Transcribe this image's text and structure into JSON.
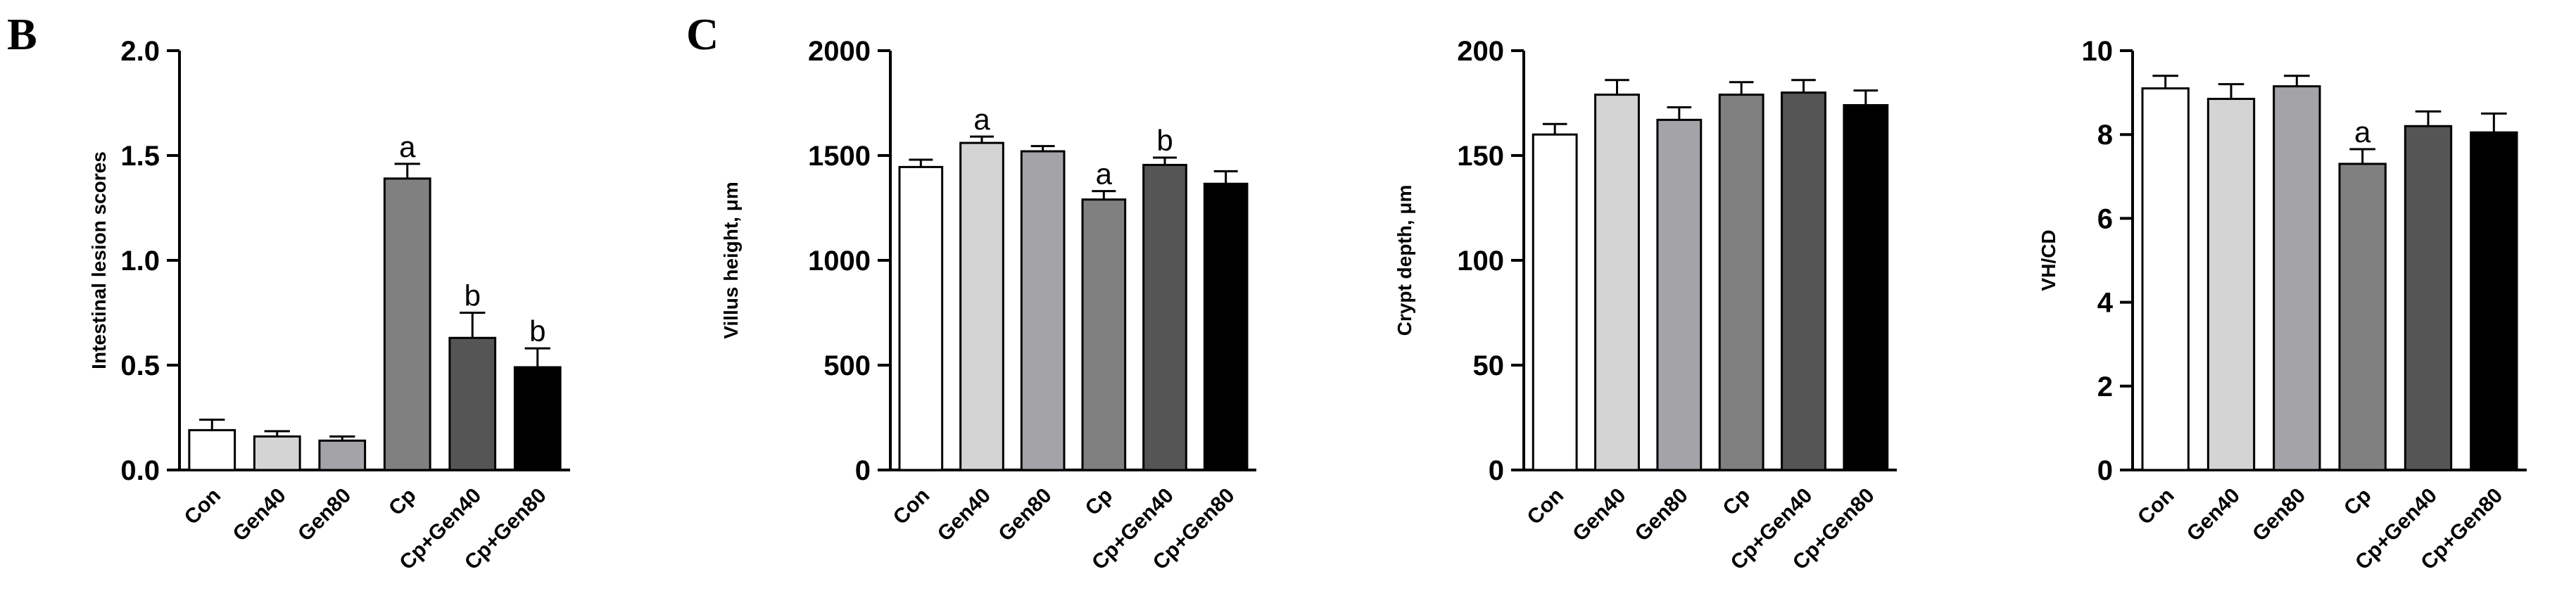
{
  "figure": {
    "panel_letters": [
      {
        "label": "B"
      },
      {
        "label": "C"
      }
    ]
  },
  "chart_data": [
    {
      "type": "bar",
      "panel": "B",
      "categories": [
        "Con",
        "Gen40",
        "Gen80",
        "Cp",
        "Cp+Gen40",
        "Cp+Gen80"
      ],
      "values": [
        0.19,
        0.16,
        0.14,
        1.39,
        0.63,
        0.49
      ],
      "errors": [
        0.05,
        0.025,
        0.02,
        0.07,
        0.12,
        0.09
      ],
      "annotations": [
        "",
        "",
        "",
        "a",
        "b",
        "b"
      ],
      "colors": [
        "#ffffff",
        "#d4d4d4",
        "#a4a4a8",
        "#808080",
        "#555555",
        "#000000"
      ],
      "title": "",
      "xlabel": "",
      "ylabel": "Intestinal lesion scores",
      "ylim": [
        0,
        2.0
      ],
      "yticks": [
        "0.0",
        "0.5",
        "1.0",
        "1.5",
        "2.0"
      ],
      "ytick_values": [
        0,
        0.5,
        1.0,
        1.5,
        2.0
      ],
      "grid": false
    },
    {
      "type": "bar",
      "panel": "C",
      "categories": [
        "Con",
        "Gen40",
        "Gen80",
        "Cp",
        "Cp+Gen40",
        "Cp+Gen80"
      ],
      "values": [
        1445,
        1560,
        1520,
        1290,
        1455,
        1365
      ],
      "errors": [
        35,
        30,
        25,
        40,
        35,
        60
      ],
      "annotations": [
        "",
        "a",
        "",
        "a",
        "b",
        ""
      ],
      "colors": [
        "#ffffff",
        "#d4d4d4",
        "#a4a4a8",
        "#808080",
        "#555555",
        "#000000"
      ],
      "title": "",
      "xlabel": "",
      "ylabel": "Villus height, μm",
      "ylim": [
        0,
        2000
      ],
      "yticks": [
        "0",
        "500",
        "1000",
        "1500",
        "2000"
      ],
      "ytick_values": [
        0,
        500,
        1000,
        1500,
        2000
      ],
      "grid": false
    },
    {
      "type": "bar",
      "categories": [
        "Con",
        "Gen40",
        "Gen80",
        "Cp",
        "Cp+Gen40",
        "Cp+Gen80"
      ],
      "values": [
        160,
        179,
        167,
        179,
        180,
        174
      ],
      "errors": [
        5,
        7,
        6,
        6,
        6,
        7
      ],
      "annotations": [
        "",
        "",
        "",
        "",
        "",
        ""
      ],
      "colors": [
        "#ffffff",
        "#d4d4d4",
        "#a4a4a8",
        "#808080",
        "#555555",
        "#000000"
      ],
      "title": "",
      "xlabel": "",
      "ylabel": "Crypt depth, μm",
      "ylim": [
        0,
        200
      ],
      "yticks": [
        "0",
        "50",
        "100",
        "150",
        "200"
      ],
      "ytick_values": [
        0,
        50,
        100,
        150,
        200
      ],
      "grid": false
    },
    {
      "type": "bar",
      "categories": [
        "Con",
        "Gen40",
        "Gen80",
        "Cp",
        "Cp+Gen40",
        "Cp+Gen80"
      ],
      "values": [
        9.1,
        8.85,
        9.15,
        7.3,
        8.2,
        8.05
      ],
      "errors": [
        0.3,
        0.35,
        0.25,
        0.35,
        0.35,
        0.45
      ],
      "annotations": [
        "",
        "",
        "",
        "a",
        "",
        ""
      ],
      "colors": [
        "#ffffff",
        "#d4d4d4",
        "#a4a4a8",
        "#808080",
        "#555555",
        "#000000"
      ],
      "title": "",
      "xlabel": "",
      "ylabel": "VH/CD",
      "ylim": [
        0,
        10
      ],
      "yticks": [
        "0",
        "2",
        "4",
        "6",
        "8",
        "10"
      ],
      "ytick_values": [
        0,
        2,
        4,
        6,
        8,
        10
      ],
      "grid": false
    }
  ]
}
